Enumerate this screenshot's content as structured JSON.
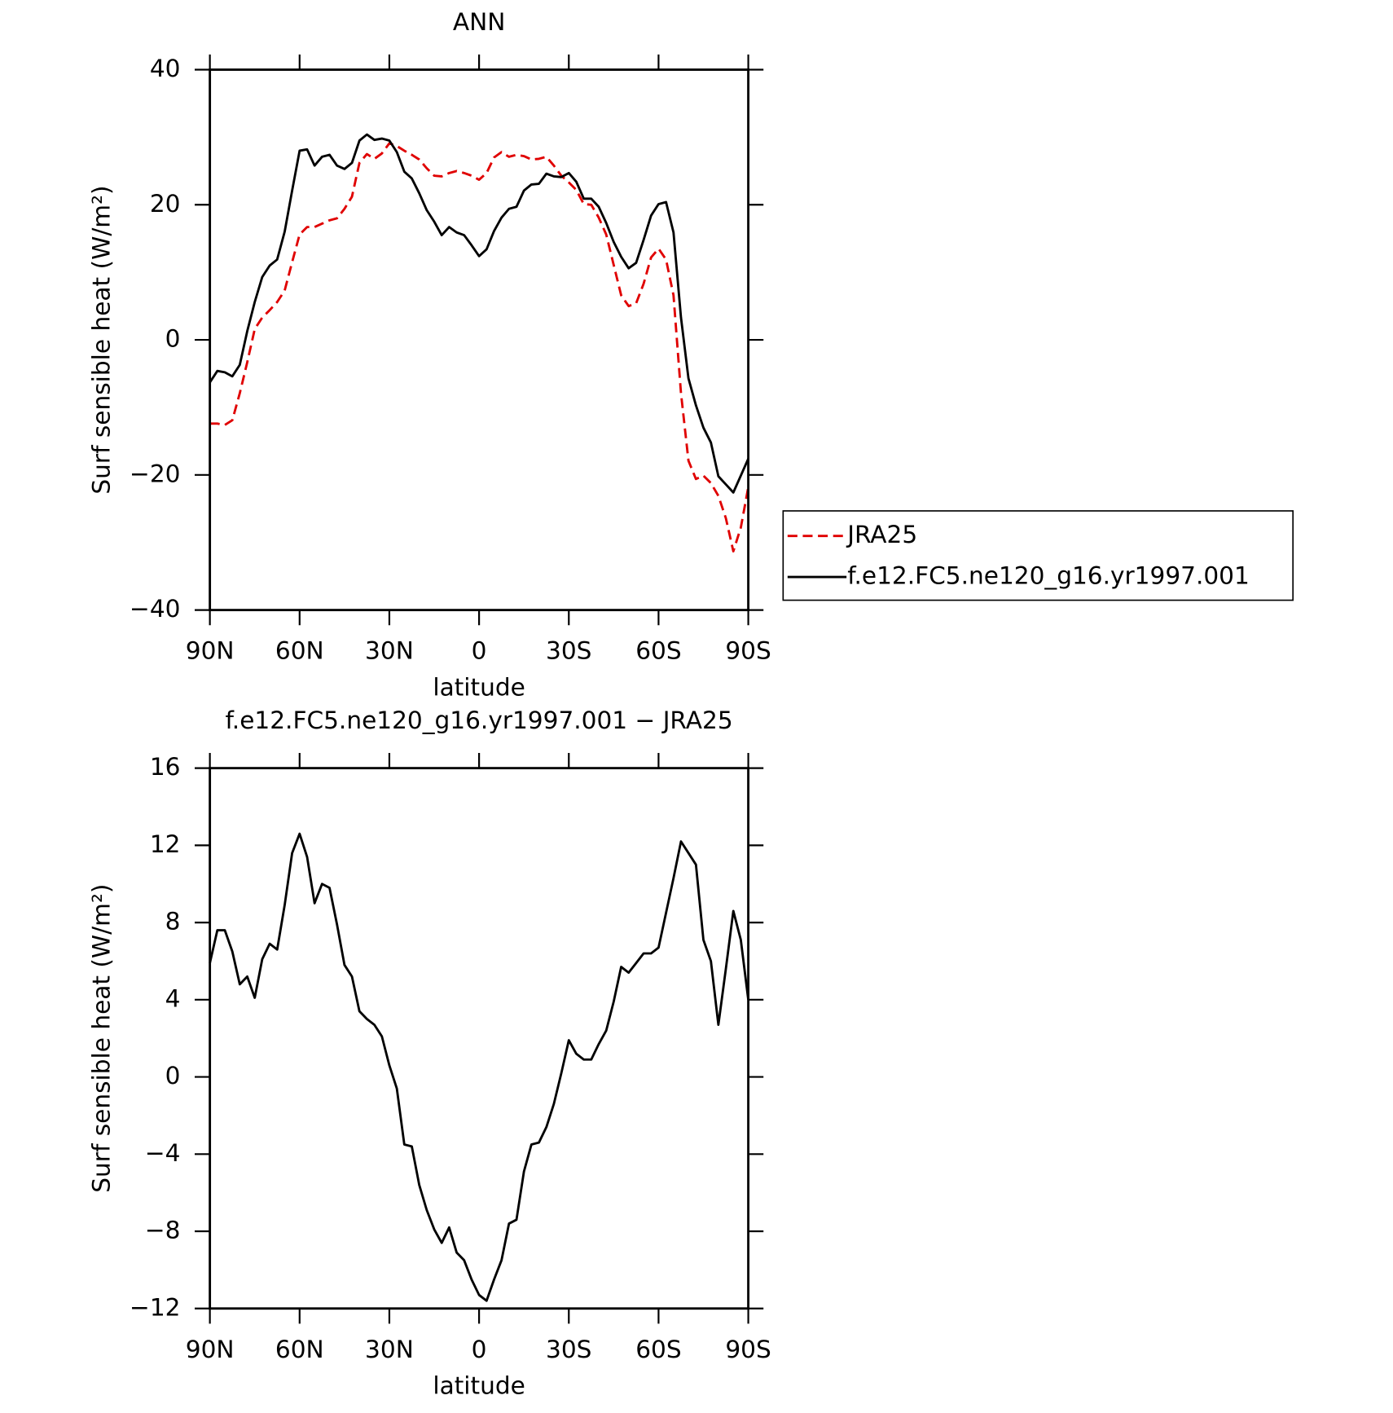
{
  "chart_data": [
    {
      "type": "line",
      "title": "ANN",
      "xlabel": "latitude",
      "ylabel": "Surf sensible heat (W/m²)",
      "x": [
        90,
        87.5,
        85,
        82.5,
        80,
        77.5,
        75,
        72.5,
        70,
        67.5,
        65,
        62.5,
        60,
        57.5,
        55,
        52.5,
        50,
        47.5,
        45,
        42.5,
        40,
        37.5,
        35,
        32.5,
        30,
        27.5,
        25,
        22.5,
        20,
        17.5,
        15,
        12.5,
        10,
        7.5,
        5,
        2.5,
        0,
        -2.5,
        -5,
        -7.5,
        -10,
        -12.5,
        -15,
        -17.5,
        -20,
        -22.5,
        -25,
        -27.5,
        -30,
        -32.5,
        -35,
        -37.5,
        -40,
        -42.5,
        -45,
        -47.5,
        -50,
        -52.5,
        -55,
        -57.5,
        -60,
        -62.5,
        -65,
        -67.5,
        -70,
        -72.5,
        -75,
        -77.5,
        -80,
        -82.5,
        -85,
        -87.5,
        -90
      ],
      "series": [
        {
          "name": "JRA25",
          "color": "#e00000",
          "dash": "dashed",
          "values": [
            -12.4,
            -12.4,
            -12.6,
            -11.9,
            -7.9,
            -3.3,
            1.6,
            3.3,
            4.4,
            5.6,
            7.3,
            11.5,
            15.6,
            16.7,
            16.7,
            17.2,
            17.7,
            18.0,
            19.4,
            21.2,
            26.2,
            27.5,
            26.8,
            27.6,
            29.1,
            28.7,
            28.0,
            27.4,
            26.7,
            25.4,
            24.3,
            24.2,
            24.7,
            25.0,
            24.7,
            24.3,
            23.7,
            24.7,
            27.0,
            27.8,
            27.1,
            27.4,
            27.2,
            26.7,
            26.8,
            27.1,
            25.8,
            24.3,
            23.3,
            22.2,
            20.1,
            20.0,
            18.1,
            15.6,
            11.1,
            6.6,
            5.0,
            5.4,
            8.3,
            12.2,
            13.5,
            11.9,
            6.6,
            -7.9,
            -17.9,
            -20.6,
            -20.1,
            -21.2,
            -23.1,
            -26.4,
            -31.3,
            -27.8,
            -21.8
          ]
        },
        {
          "name": "f.e12.FC5.ne120_g16.yr1997.001",
          "color": "#000000",
          "dash": "solid",
          "values": [
            -6.3,
            -4.6,
            -4.8,
            -5.4,
            -3.7,
            1.3,
            5.6,
            9.3,
            11.0,
            11.9,
            16.0,
            22.1,
            28.0,
            28.2,
            25.8,
            27.1,
            27.4,
            25.8,
            25.3,
            26.2,
            29.5,
            30.4,
            29.6,
            29.8,
            29.5,
            27.8,
            24.9,
            23.9,
            21.7,
            19.2,
            17.5,
            15.5,
            16.7,
            15.9,
            15.5,
            14.0,
            12.4,
            13.4,
            16.1,
            18.1,
            19.4,
            19.7,
            22.1,
            23.0,
            23.1,
            24.6,
            24.2,
            24.1,
            24.7,
            23.4,
            20.9,
            20.9,
            19.7,
            17.3,
            14.5,
            12.3,
            10.6,
            11.4,
            14.8,
            18.4,
            20.1,
            20.4,
            15.9,
            3.3,
            -5.7,
            -9.7,
            -13.0,
            -15.2,
            -20.2,
            -21.4,
            -22.6,
            -20.1,
            -17.6
          ]
        }
      ],
      "xlim": [
        90,
        -90
      ],
      "xticks": [
        {
          "value": 90,
          "label": "90N"
        },
        {
          "value": 60,
          "label": "60N"
        },
        {
          "value": 30,
          "label": "30N"
        },
        0,
        {
          "value": -30,
          "label": "30S"
        },
        {
          "value": -60,
          "label": "60S"
        },
        {
          "value": -90,
          "label": "90S"
        }
      ],
      "ylim": [
        -40,
        40
      ],
      "yticks": [
        {
          "value": -40,
          "label": "−40"
        },
        {
          "value": -20,
          "label": "−20"
        },
        0,
        20,
        40
      ],
      "legend": "outside-right"
    },
    {
      "type": "line",
      "title": "f.e12.FC5.ne120_g16.yr1997.001 − JRA25",
      "xlabel": "latitude",
      "ylabel": "Surf sensible heat (W/m²)",
      "x": [
        90,
        87.5,
        85,
        82.5,
        80,
        77.5,
        75,
        72.5,
        70,
        67.5,
        65,
        62.5,
        60,
        57.5,
        55,
        52.5,
        50,
        47.5,
        45,
        42.5,
        40,
        37.5,
        35,
        32.5,
        30,
        27.5,
        25,
        22.5,
        20,
        17.5,
        15,
        12.5,
        10,
        7.5,
        5,
        2.5,
        0,
        -2.5,
        -5,
        -7.5,
        -10,
        -12.5,
        -15,
        -17.5,
        -20,
        -22.5,
        -25,
        -27.5,
        -30,
        -32.5,
        -35,
        -37.5,
        -40,
        -42.5,
        -45,
        -47.5,
        -50,
        -52.5,
        -55,
        -57.5,
        -60,
        -62.5,
        -65,
        -67.5,
        -70,
        -72.5,
        -75,
        -77.5,
        -80,
        -82.5,
        -85,
        -87.5,
        -90
      ],
      "series": [
        {
          "color": "#000000",
          "dash": "solid",
          "values": [
            5.9,
            7.6,
            7.6,
            6.5,
            4.8,
            5.2,
            4.1,
            6.1,
            6.9,
            6.6,
            8.9,
            11.6,
            12.6,
            11.4,
            9.0,
            10.0,
            9.8,
            7.9,
            5.8,
            5.2,
            3.4,
            3.0,
            2.7,
            2.1,
            0.6,
            -0.6,
            -3.5,
            -3.6,
            -5.6,
            -6.9,
            -7.9,
            -8.6,
            -7.8,
            -9.1,
            -9.5,
            -10.5,
            -11.3,
            -11.6,
            -10.5,
            -9.5,
            -7.6,
            -7.4,
            -4.9,
            -3.5,
            -3.4,
            -2.6,
            -1.4,
            0.2,
            1.9,
            1.2,
            0.9,
            0.9,
            1.7,
            2.4,
            3.9,
            5.7,
            5.4,
            5.9,
            6.4,
            6.4,
            6.7,
            8.5,
            10.3,
            12.2,
            11.6,
            11.0,
            7.1,
            6.0,
            2.7,
            5.6,
            8.6,
            7.1,
            4.0
          ]
        }
      ],
      "xlim": [
        90,
        -90
      ],
      "xticks": [
        {
          "value": 90,
          "label": "90N"
        },
        {
          "value": 60,
          "label": "60N"
        },
        {
          "value": 30,
          "label": "30N"
        },
        0,
        {
          "value": -30,
          "label": "30S"
        },
        {
          "value": -60,
          "label": "60S"
        },
        {
          "value": -90,
          "label": "90S"
        }
      ],
      "ylim": [
        -12,
        16
      ],
      "yticks": [
        {
          "value": -12,
          "label": "−12"
        },
        {
          "value": -8,
          "label": "−8"
        },
        {
          "value": -4,
          "label": "−4"
        },
        0,
        4,
        8,
        12,
        16
      ]
    }
  ]
}
